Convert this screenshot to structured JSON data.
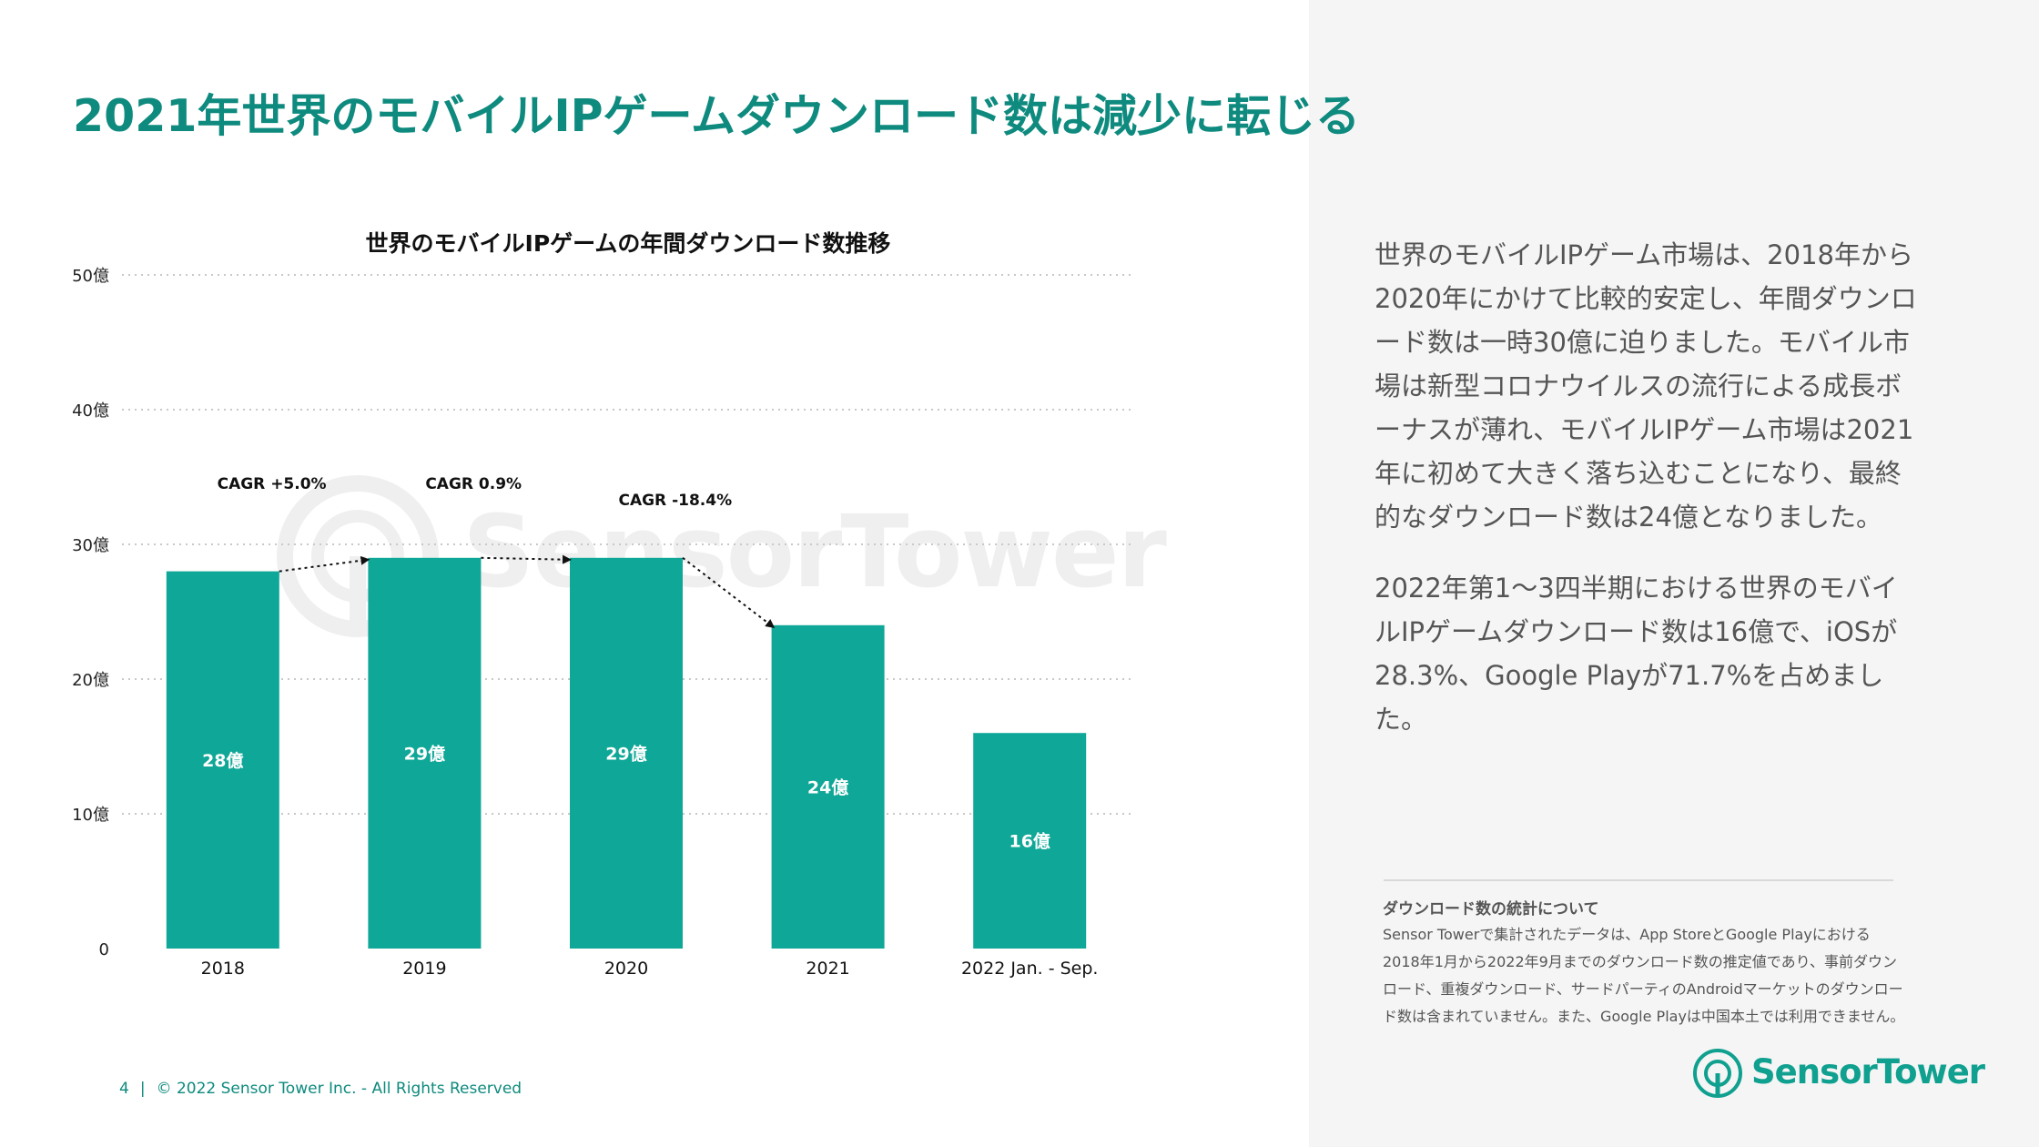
{
  "title": "2021年世界のモバイルIPゲームダウンロード数は減少に転じる",
  "chart_data": {
    "type": "bar",
    "title": "世界のモバイルIPゲームの年間ダウンロード数推移",
    "categories": [
      "2018",
      "2019",
      "2020",
      "2021",
      "2022 Jan. - Sep."
    ],
    "values": [
      28,
      29,
      29,
      24,
      16
    ],
    "data_labels": [
      "28億",
      "29億",
      "29億",
      "24億",
      "16億"
    ],
    "y_ticks": [
      {
        "value": 0,
        "label": "0"
      },
      {
        "value": 10,
        "label": "10億"
      },
      {
        "value": 20,
        "label": "20億"
      },
      {
        "value": 30,
        "label": "30億"
      },
      {
        "value": 40,
        "label": "40億"
      },
      {
        "value": 50,
        "label": "50億"
      }
    ],
    "ylim": [
      0,
      50
    ],
    "grid": true,
    "bar_color": "#0fa797",
    "annotations": [
      {
        "label": "CAGR +5.0%",
        "from": 0,
        "to": 1
      },
      {
        "label": "CAGR 0.9%",
        "from": 1,
        "to": 2
      },
      {
        "label": "CAGR -18.4%",
        "from": 2,
        "to": 3
      }
    ]
  },
  "body": [
    "世界のモバイルIPゲーム市場は、2018年から2020年にかけて比較的安定し、年間ダウンロード数は一時30億に迫りました。モバイル市場は新型コロナウイルスの流行による成長ボーナスが薄れ、モバイルIPゲーム市場は2021年に初めて大きく落ち込むことになり、最終的なダウンロード数は24億となりました。",
    "2022年第1～3四半期における世界のモバイルIPゲームダウンロード数は16億で、iOSが28.3%、Google Playが71.7%を占めました。"
  ],
  "note": {
    "title": "ダウンロード数の統計について",
    "text": "Sensor Towerで集計されたデータは、App StoreとGoogle Playにおける2018年1月から2022年9月までのダウンロード数の推定値であり、事前ダウンロード、重複ダウンロード、サードパーティのAndroidマーケットのダウンロード数は含まれていません。また、Google Playは中国本土では利用できません。"
  },
  "brand": "SensorTower",
  "footer": {
    "page_number": "4",
    "separator": "|",
    "copyright": "© 2022 Sensor Tower Inc. - All Rights Reserved"
  },
  "colors": {
    "accent": "#0e8a7e",
    "bar": "#0fa797",
    "logo": "#10a08f"
  }
}
